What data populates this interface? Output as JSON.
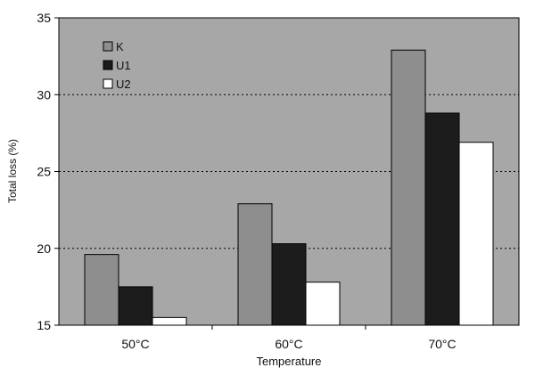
{
  "chart_data": {
    "type": "bar",
    "categories": [
      "50°C",
      "60°C",
      "70°C"
    ],
    "series": [
      {
        "name": "K",
        "values": [
          19.6,
          22.9,
          32.9
        ]
      },
      {
        "name": "U1",
        "values": [
          17.5,
          20.3,
          28.8
        ]
      },
      {
        "name": "U2",
        "values": [
          15.5,
          17.8,
          26.9
        ]
      }
    ],
    "xlabel": "Temperature",
    "ylabel": "Total loss (%)",
    "ylim": [
      15,
      35
    ],
    "yticks": [
      15,
      20,
      25,
      30,
      35
    ],
    "grid": "horizontal dotted",
    "legend_position": "top-left",
    "colors": {
      "plot_bg": "#a7a7a7",
      "K": "#8e8e8e",
      "U1": "#1c1c1c",
      "U2": "#ffffff",
      "axis": "#000000",
      "grid": "#000000"
    }
  }
}
